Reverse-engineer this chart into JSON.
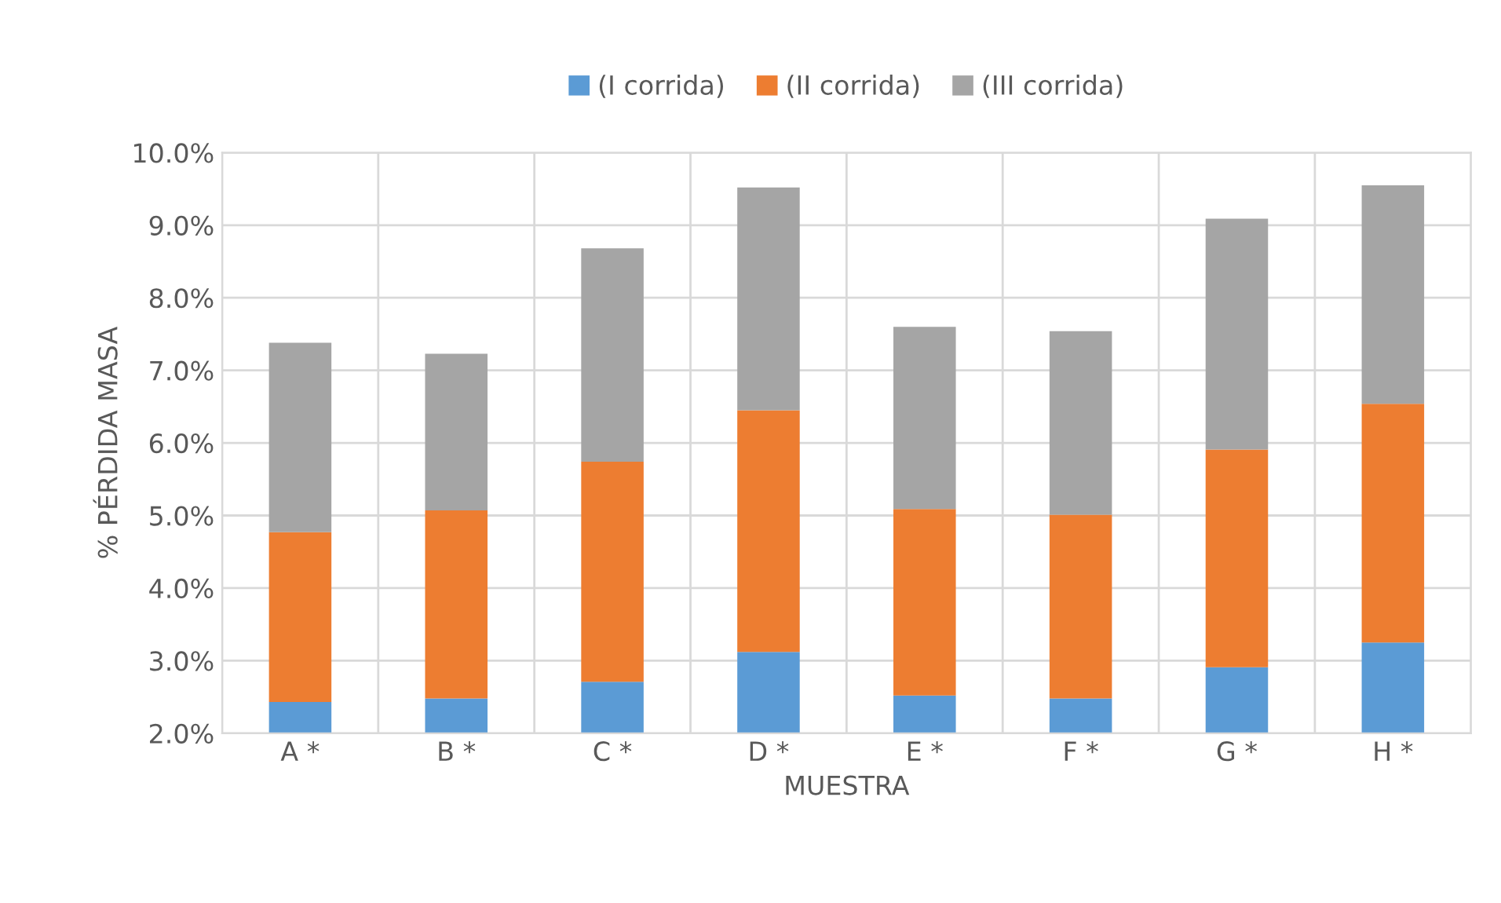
{
  "chart_data": {
    "type": "bar",
    "stacked": true,
    "xlabel": "MUESTRA",
    "ylabel": "% PÉRDIDA MASA",
    "categories": [
      "A *",
      "B *",
      "C *",
      "D *",
      "E *",
      "F *",
      "G *",
      "H *"
    ],
    "series": [
      {
        "name": "(I corrida)",
        "color": "#5b9bd5",
        "values": [
          2.43,
          2.48,
          2.71,
          3.12,
          2.52,
          2.48,
          2.91,
          3.25
        ]
      },
      {
        "name": "(II corrida)",
        "color": "#ed7d31",
        "values": [
          2.34,
          2.59,
          3.03,
          3.33,
          2.57,
          2.53,
          3.0,
          3.29
        ]
      },
      {
        "name": "(III corrida)",
        "color": "#a5a5a5",
        "values": [
          2.61,
          2.16,
          2.94,
          3.07,
          2.51,
          2.53,
          3.18,
          3.01
        ]
      }
    ],
    "ylim": [
      2,
      10
    ],
    "yticks": [
      {
        "value": 2,
        "label": "2.0%"
      },
      {
        "value": 3,
        "label": "3.0%"
      },
      {
        "value": 4,
        "label": "4.0%"
      },
      {
        "value": 5,
        "label": "5.0%"
      },
      {
        "value": 6,
        "label": "6.0%"
      },
      {
        "value": 7,
        "label": "7.0%"
      },
      {
        "value": 8,
        "label": "8.0%"
      },
      {
        "value": 9,
        "label": "9.0%"
      },
      {
        "value": 10,
        "label": "10.0%"
      }
    ],
    "grid": true,
    "legend": "top"
  }
}
